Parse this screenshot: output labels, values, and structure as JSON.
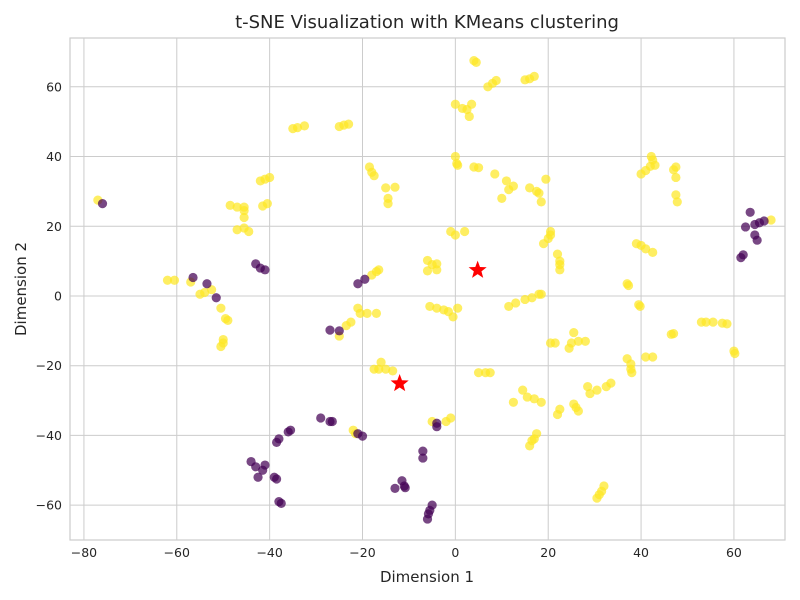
{
  "chart_data": {
    "type": "scatter",
    "title": "t-SNE Visualization with KMeans clustering",
    "xlabel": "Dimension 1",
    "ylabel": "Dimension 2",
    "xlim": [
      -83,
      71
    ],
    "ylim": [
      -70,
      74
    ],
    "xticks": [
      -80,
      -60,
      -40,
      -20,
      0,
      20,
      40,
      60
    ],
    "yticks": [
      -60,
      -40,
      -20,
      0,
      20,
      40,
      60
    ],
    "grid": true,
    "legend": "none",
    "colors": {
      "cluster_0": "#440154",
      "cluster_1": "#fde725",
      "centroid": "#ff0000"
    },
    "centroids": [
      {
        "x": 4.8,
        "y": 7.4
      },
      {
        "x": -12.0,
        "y": -25.1
      }
    ],
    "series": [
      {
        "cluster": 0,
        "points": [
          [
            -76,
            26.5
          ],
          [
            -56.5,
            5.3
          ],
          [
            -53.5,
            3.5
          ],
          [
            -51.5,
            -0.5
          ],
          [
            -43,
            9.2
          ],
          [
            -42,
            8
          ],
          [
            -41,
            7.5
          ],
          [
            -21,
            3.5
          ],
          [
            -19.5,
            4.8
          ],
          [
            -27,
            -9.8
          ],
          [
            -25,
            -10
          ],
          [
            -29,
            -35
          ],
          [
            -27,
            -36
          ],
          [
            -26.5,
            -36
          ],
          [
            -21,
            -39.5
          ],
          [
            -20,
            -40.2
          ],
          [
            -36,
            -39
          ],
          [
            -35.5,
            -38.5
          ],
          [
            -38,
            -41
          ],
          [
            -38.5,
            -42
          ],
          [
            -44,
            -47.5
          ],
          [
            -43,
            -49
          ],
          [
            -41,
            -48.5
          ],
          [
            -41.5,
            -50
          ],
          [
            -42.5,
            -52
          ],
          [
            -39,
            -52
          ],
          [
            -38.5,
            -52.5
          ],
          [
            -38,
            -59
          ],
          [
            -37.5,
            -59.5
          ],
          [
            -13,
            -55.2
          ],
          [
            -11.5,
            -53
          ],
          [
            -11,
            -54.5
          ],
          [
            -10.8,
            -55
          ],
          [
            -7,
            -44.5
          ],
          [
            -7,
            -46.5
          ],
          [
            -4,
            -36.5
          ],
          [
            -4,
            -37.5
          ],
          [
            -5,
            -60
          ],
          [
            -5.5,
            -61.5
          ],
          [
            -5.8,
            -62.5
          ],
          [
            -6,
            -64
          ],
          [
            61.5,
            11
          ],
          [
            62,
            11.8
          ],
          [
            62.5,
            19.8
          ],
          [
            63.5,
            24
          ],
          [
            64.5,
            20.5
          ],
          [
            64.5,
            17.5
          ],
          [
            65,
            16
          ],
          [
            65.5,
            21
          ],
          [
            66.5,
            21.5
          ]
        ]
      },
      {
        "cluster": 1,
        "points": [
          [
            -77,
            27.5
          ],
          [
            -60.5,
            4.5
          ],
          [
            -62,
            4.5
          ],
          [
            -57,
            4
          ],
          [
            -55,
            0.5
          ],
          [
            -54,
            1
          ],
          [
            -52.5,
            1.8
          ],
          [
            -50.5,
            -3.5
          ],
          [
            -49.5,
            -6.5
          ],
          [
            -49,
            -7
          ],
          [
            -50,
            -12.5
          ],
          [
            -50,
            -13.5
          ],
          [
            -50.5,
            -14.5
          ],
          [
            -48.5,
            26
          ],
          [
            -47,
            25.5
          ],
          [
            -45.5,
            25.5
          ],
          [
            -45.5,
            24.5
          ],
          [
            -45.5,
            22.5
          ],
          [
            -47,
            19
          ],
          [
            -45.5,
            19.5
          ],
          [
            -44.5,
            18.5
          ],
          [
            -42,
            33
          ],
          [
            -41,
            33.5
          ],
          [
            -40,
            34
          ],
          [
            -41.5,
            25.8
          ],
          [
            -40.5,
            26.5
          ],
          [
            -35,
            48
          ],
          [
            -34,
            48.3
          ],
          [
            -32.5,
            48.8
          ],
          [
            -25,
            48.6
          ],
          [
            -24,
            49
          ],
          [
            -23,
            49.3
          ],
          [
            -18.5,
            37
          ],
          [
            -18,
            35.5
          ],
          [
            -17.5,
            34.5
          ],
          [
            -15,
            31
          ],
          [
            -13,
            31.2
          ],
          [
            -14.5,
            28
          ],
          [
            -14.5,
            26.5
          ],
          [
            -18,
            6
          ],
          [
            -17,
            7
          ],
          [
            -16.5,
            7.5
          ],
          [
            -21,
            -3.5
          ],
          [
            -20.5,
            -5
          ],
          [
            -19,
            -5
          ],
          [
            -17,
            -5
          ],
          [
            -22.5,
            -7.5
          ],
          [
            -23.5,
            -8.5
          ],
          [
            -25,
            -11.5
          ],
          [
            -17.5,
            -21
          ],
          [
            -16.5,
            -21
          ],
          [
            -16,
            -19
          ],
          [
            -15,
            -21
          ],
          [
            -13.5,
            -21.5
          ],
          [
            -22,
            -38.5
          ],
          [
            -21.5,
            -39.5
          ],
          [
            -6,
            10.2
          ],
          [
            -5,
            9
          ],
          [
            -4,
            9.2
          ],
          [
            -4,
            7.5
          ],
          [
            -6,
            7.2
          ],
          [
            -5.5,
            -3
          ],
          [
            -4,
            -3.5
          ],
          [
            -2.5,
            -4
          ],
          [
            -1.5,
            -4.5
          ],
          [
            -0.5,
            -6
          ],
          [
            0.5,
            -3.5
          ],
          [
            0,
            55
          ],
          [
            1.5,
            53.8
          ],
          [
            2.5,
            53.5
          ],
          [
            3.5,
            55
          ],
          [
            3,
            51.5
          ],
          [
            4,
            67.5
          ],
          [
            4.5,
            67
          ],
          [
            7,
            60
          ],
          [
            8,
            61
          ],
          [
            8.8,
            61.8
          ],
          [
            15,
            62
          ],
          [
            16,
            62.3
          ],
          [
            17,
            63
          ],
          [
            0,
            40
          ],
          [
            0.3,
            38
          ],
          [
            0.5,
            37.5
          ],
          [
            4,
            37
          ],
          [
            5,
            36.8
          ],
          [
            8.5,
            35
          ],
          [
            11,
            33
          ],
          [
            12.5,
            31.5
          ],
          [
            11.5,
            30.5
          ],
          [
            10,
            28
          ],
          [
            -1,
            18.5
          ],
          [
            0,
            17.5
          ],
          [
            2,
            18.5
          ],
          [
            16,
            31
          ],
          [
            18,
            29.5
          ],
          [
            17.5,
            30
          ],
          [
            19.5,
            33.5
          ],
          [
            18.5,
            27
          ],
          [
            20,
            16.5
          ],
          [
            20.5,
            17.5
          ],
          [
            20.5,
            18.5
          ],
          [
            19,
            15
          ],
          [
            22,
            12
          ],
          [
            22.5,
            10
          ],
          [
            22.5,
            9
          ],
          [
            22.5,
            7.5
          ],
          [
            11.5,
            -3
          ],
          [
            13,
            -2
          ],
          [
            15,
            -1
          ],
          [
            16.5,
            -0.5
          ],
          [
            18,
            0.5
          ],
          [
            18.5,
            0.5
          ],
          [
            20.5,
            -13.5
          ],
          [
            21.5,
            -13.5
          ],
          [
            24.5,
            -15
          ],
          [
            25,
            -13.5
          ],
          [
            25.5,
            -10.5
          ],
          [
            26.5,
            -13
          ],
          [
            28,
            -13
          ],
          [
            14.5,
            -27
          ],
          [
            15.5,
            -29
          ],
          [
            17,
            -29.5
          ],
          [
            18.5,
            -30.5
          ],
          [
            12.5,
            -30.5
          ],
          [
            22,
            -34
          ],
          [
            22.5,
            -32.5
          ],
          [
            25.5,
            -31
          ],
          [
            26,
            -32
          ],
          [
            26.5,
            -33
          ],
          [
            16,
            -43
          ],
          [
            16.5,
            -41.5
          ],
          [
            17,
            -41
          ],
          [
            17.5,
            -39.5
          ],
          [
            28.5,
            -26
          ],
          [
            29,
            -28
          ],
          [
            30.5,
            -27
          ],
          [
            32.5,
            -26
          ],
          [
            33.5,
            -25
          ],
          [
            30.5,
            -58
          ],
          [
            31,
            -57
          ],
          [
            31.5,
            -56
          ],
          [
            32,
            -54.5
          ],
          [
            -5,
            -36
          ],
          [
            -2,
            -36
          ],
          [
            -1,
            -35
          ],
          [
            5,
            -22
          ],
          [
            6.5,
            -22
          ],
          [
            7.5,
            -22
          ],
          [
            37,
            3.5
          ],
          [
            37.3,
            3
          ],
          [
            39,
            15
          ],
          [
            40,
            14.5
          ],
          [
            41,
            13.5
          ],
          [
            42.5,
            12.5
          ],
          [
            39.5,
            -2.5
          ],
          [
            39.8,
            -3
          ],
          [
            37,
            -18
          ],
          [
            37.8,
            -19.5
          ],
          [
            37.8,
            -21
          ],
          [
            38,
            -22
          ],
          [
            41,
            -17.5
          ],
          [
            42.5,
            -17.5
          ],
          [
            40,
            35
          ],
          [
            41,
            36
          ],
          [
            42,
            37.2
          ],
          [
            42.2,
            40
          ],
          [
            42.5,
            39
          ],
          [
            43,
            37.5
          ],
          [
            47,
            36.2
          ],
          [
            47.5,
            37
          ],
          [
            47.5,
            34
          ],
          [
            47.5,
            29
          ],
          [
            47.8,
            27
          ],
          [
            46.5,
            -11
          ],
          [
            47,
            -10.8
          ],
          [
            53,
            -7.5
          ],
          [
            54,
            -7.5
          ],
          [
            55.5,
            -7.5
          ],
          [
            57.5,
            -7.8
          ],
          [
            58.5,
            -8
          ],
          [
            60,
            -15.8
          ],
          [
            60.2,
            -16.5
          ],
          [
            68,
            21.8
          ]
        ]
      }
    ]
  }
}
